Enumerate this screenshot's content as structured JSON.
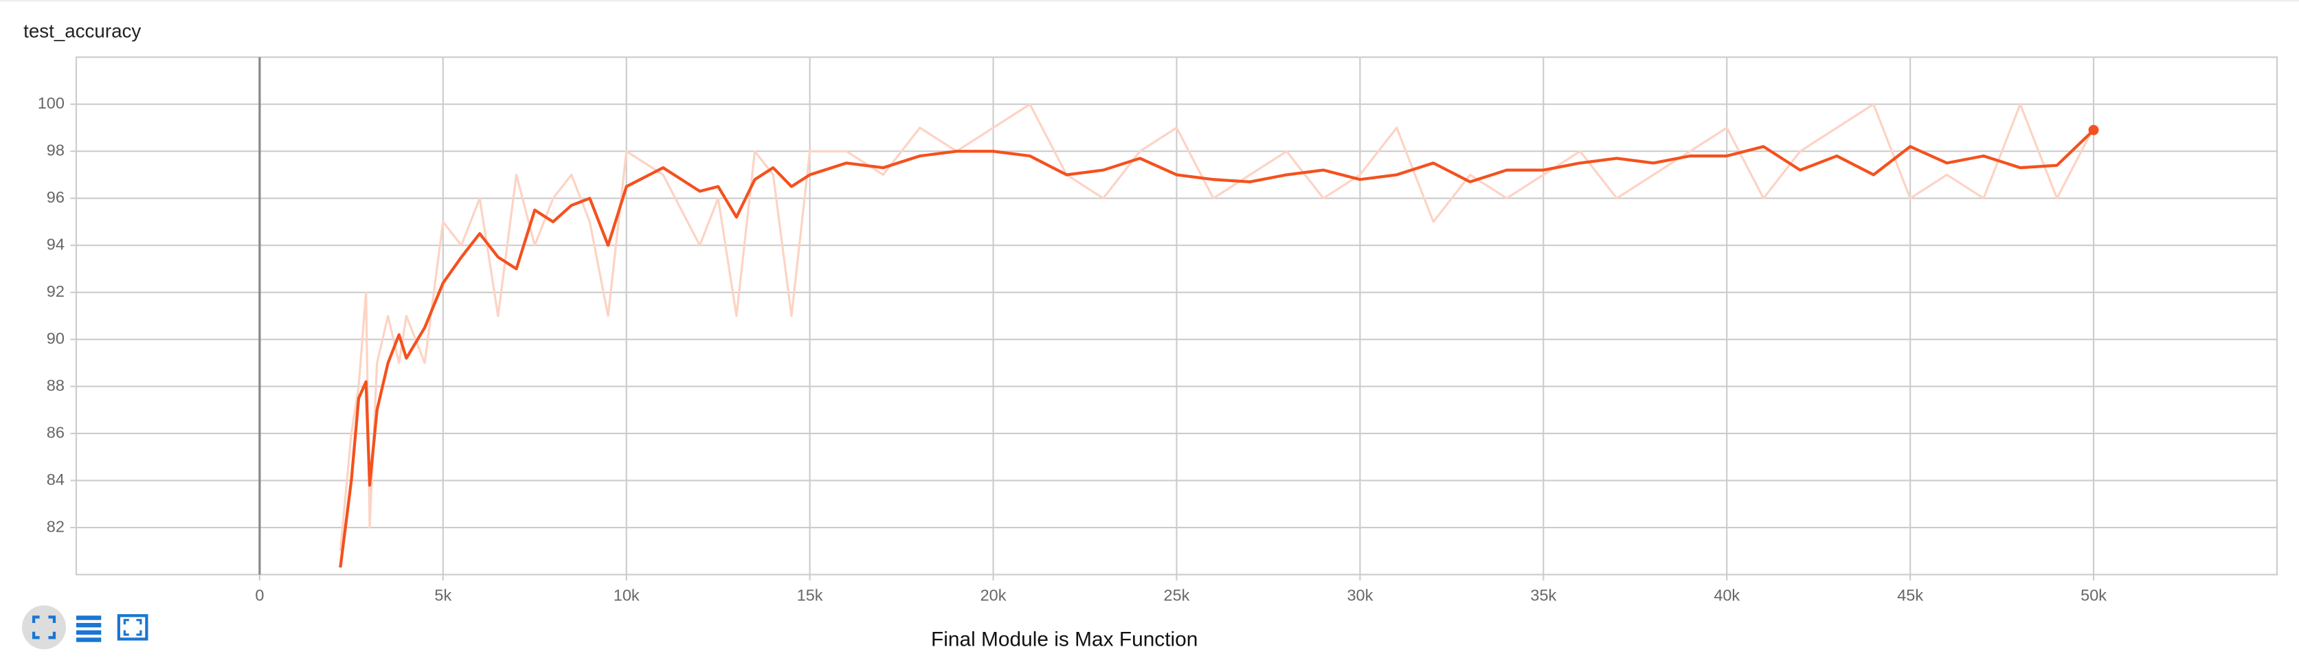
{
  "chart_data": {
    "type": "line",
    "title": "test_accuracy",
    "caption": "Final Module is Max Function",
    "x": [
      2200,
      2500,
      2700,
      2900,
      3000,
      3200,
      3500,
      3800,
      4000,
      4500,
      5000,
      5500,
      6000,
      6500,
      7000,
      7500,
      8000,
      8500,
      9000,
      9500,
      10000,
      11000,
      12000,
      12500,
      13000,
      13500,
      14000,
      14500,
      15000,
      16000,
      17000,
      18000,
      19000,
      20000,
      21000,
      22000,
      23000,
      24000,
      25000,
      26000,
      27000,
      28000,
      29000,
      30000,
      31000,
      32000,
      33000,
      34000,
      35000,
      36000,
      37000,
      38000,
      39000,
      40000,
      41000,
      42000,
      43000,
      44000,
      45000,
      46000,
      47000,
      48000,
      49000,
      50000
    ],
    "series": [
      {
        "color": "#fdd3c4",
        "values": [
          81,
          86,
          88,
          92,
          82,
          89,
          91,
          89,
          91,
          89,
          95,
          94,
          96,
          91,
          97,
          94,
          96,
          97,
          95,
          91,
          98,
          97,
          94,
          96,
          91,
          98,
          97,
          91,
          98,
          98,
          97,
          99,
          98,
          99,
          100,
          97,
          96,
          98,
          99,
          96,
          97,
          98,
          96,
          97,
          99,
          95,
          97,
          96,
          97,
          98,
          96,
          97,
          98,
          99,
          96,
          98,
          99,
          100,
          96,
          97,
          96,
          100,
          96,
          99
        ]
      },
      {
        "color": "#f4511e",
        "values": [
          80.3,
          84,
          87.5,
          88.2,
          83.8,
          87,
          89,
          90.2,
          89.2,
          90.5,
          92.4,
          93.5,
          94.5,
          93.5,
          93,
          95.5,
          95,
          95.7,
          96,
          94,
          96.5,
          97.3,
          96.3,
          96.5,
          95.2,
          96.8,
          97.3,
          96.5,
          97,
          97.5,
          97.3,
          97.8,
          98,
          98,
          97.8,
          97,
          97.2,
          97.7,
          97,
          96.8,
          96.7,
          97,
          97.2,
          96.8,
          97,
          97.5,
          96.7,
          97.2,
          97.2,
          97.5,
          97.7,
          97.5,
          97.8,
          97.8,
          98.2,
          97.2,
          97.8,
          97,
          98.2,
          97.5,
          97.8,
          97.3,
          97.4,
          98.9
        ]
      }
    ],
    "xlim": [
      -5000,
      55000
    ],
    "xticks": [
      0,
      {
        "value": 5000,
        "label": "5k"
      },
      {
        "value": 10000,
        "label": "10k"
      },
      {
        "value": 15000,
        "label": "15k"
      },
      {
        "value": 20000,
        "label": "20k"
      },
      {
        "value": 25000,
        "label": "25k"
      },
      {
        "value": 30000,
        "label": "30k"
      },
      {
        "value": 35000,
        "label": "35k"
      },
      {
        "value": 40000,
        "label": "40k"
      },
      {
        "value": 45000,
        "label": "45k"
      },
      {
        "value": 50000,
        "label": "50k"
      }
    ],
    "ylim": [
      80,
      102
    ],
    "yticks": [
      82,
      84,
      86,
      88,
      90,
      92,
      94,
      96,
      98,
      100
    ],
    "grid": true
  }
}
